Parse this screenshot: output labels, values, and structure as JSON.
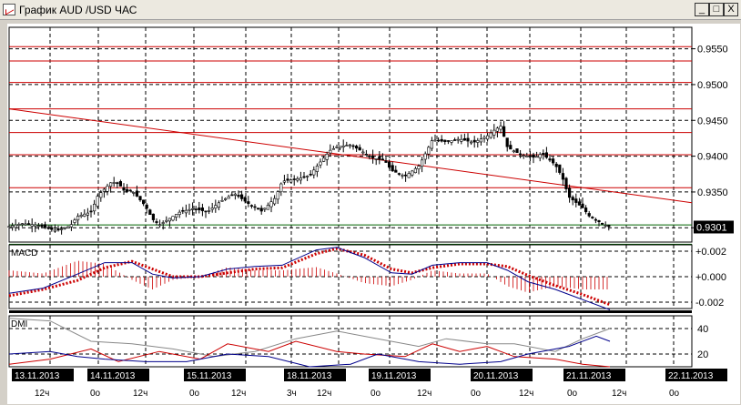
{
  "window": {
    "title": "График AUD /USD ЧАС",
    "min_label": "_",
    "max_label": "□",
    "close_label": "X"
  },
  "chart_data": [
    {
      "type": "candlestick",
      "panel": "price",
      "ylim": [
        0.928,
        0.958
      ],
      "yticks": [
        "0.9550",
        "0.9500",
        "0.9450",
        "0.9400",
        "0.9350",
        "0.9300"
      ],
      "ytick_values": [
        0.955,
        0.95,
        0.945,
        0.94,
        0.935,
        0.93
      ],
      "last_price_label": "0.9301",
      "last_price": 0.9301,
      "horizontal_levels": [
        0.9553,
        0.9533,
        0.9503,
        0.9466,
        0.9433,
        0.9402,
        0.9356
      ],
      "support_levels": [
        0.9304,
        0.9277
      ],
      "trendline": {
        "from": [
          0,
          0.9466
        ],
        "to": [
          1,
          0.9335
        ]
      },
      "close_path": [
        [
          0,
          0.9302
        ],
        [
          0.02,
          0.9306
        ],
        [
          0.04,
          0.9304
        ],
        [
          0.06,
          0.9298
        ],
        [
          0.07,
          0.9296
        ],
        [
          0.09,
          0.9303
        ],
        [
          0.1,
          0.9316
        ],
        [
          0.12,
          0.9322
        ],
        [
          0.13,
          0.9345
        ],
        [
          0.15,
          0.9364
        ],
        [
          0.16,
          0.9362
        ],
        [
          0.17,
          0.935
        ],
        [
          0.18,
          0.9352
        ],
        [
          0.2,
          0.933
        ],
        [
          0.21,
          0.9312
        ],
        [
          0.22,
          0.9304
        ],
        [
          0.23,
          0.931
        ],
        [
          0.25,
          0.9322
        ],
        [
          0.27,
          0.9327
        ],
        [
          0.29,
          0.9322
        ],
        [
          0.31,
          0.9337
        ],
        [
          0.33,
          0.9348
        ],
        [
          0.35,
          0.9334
        ],
        [
          0.37,
          0.9323
        ],
        [
          0.39,
          0.9342
        ],
        [
          0.4,
          0.9365
        ],
        [
          0.42,
          0.9368
        ],
        [
          0.44,
          0.9373
        ],
        [
          0.45,
          0.9385
        ],
        [
          0.47,
          0.9408
        ],
        [
          0.48,
          0.9413
        ],
        [
          0.5,
          0.9416
        ],
        [
          0.52,
          0.9405
        ],
        [
          0.53,
          0.9398
        ],
        [
          0.55,
          0.9394
        ],
        [
          0.56,
          0.938
        ],
        [
          0.58,
          0.9372
        ],
        [
          0.6,
          0.9386
        ],
        [
          0.61,
          0.9404
        ],
        [
          0.62,
          0.9423
        ],
        [
          0.64,
          0.942
        ],
        [
          0.66,
          0.9424
        ],
        [
          0.68,
          0.9419
        ],
        [
          0.7,
          0.9428
        ],
        [
          0.71,
          0.9436
        ],
        [
          0.72,
          0.9442
        ],
        [
          0.73,
          0.9412
        ],
        [
          0.75,
          0.9402
        ],
        [
          0.77,
          0.9398
        ],
        [
          0.78,
          0.9404
        ],
        [
          0.8,
          0.9388
        ],
        [
          0.81,
          0.9371
        ],
        [
          0.82,
          0.9343
        ],
        [
          0.84,
          0.9328
        ],
        [
          0.85,
          0.9316
        ],
        [
          0.87,
          0.9305
        ],
        [
          0.88,
          0.9301
        ]
      ]
    },
    {
      "type": "line",
      "panel": "MACD",
      "name": "MACD",
      "ylim": [
        -0.0025,
        0.0025
      ],
      "yticks": [
        "+0.002",
        "+0.000",
        "-0.002"
      ],
      "ytick_values": [
        0.002,
        0.0,
        -0.002
      ],
      "series": [
        {
          "name": "",
          "style": "dotted",
          "color": "#cc0000",
          "points": [
            [
              0,
              -0.0015
            ],
            [
              0.05,
              -0.001
            ],
            [
              0.1,
              -0.0003
            ],
            [
              0.14,
              0.0007
            ],
            [
              0.18,
              0.0012
            ],
            [
              0.21,
              0.0006
            ],
            [
              0.24,
              0.0
            ],
            [
              0.28,
              0.0
            ],
            [
              0.32,
              0.0003
            ],
            [
              0.36,
              0.0006
            ],
            [
              0.4,
              0.0007
            ],
            [
              0.45,
              0.0018
            ],
            [
              0.48,
              0.0022
            ],
            [
              0.52,
              0.0017
            ],
            [
              0.56,
              0.0006
            ],
            [
              0.59,
              0.0003
            ],
            [
              0.62,
              0.0007
            ],
            [
              0.66,
              0.001
            ],
            [
              0.7,
              0.001
            ],
            [
              0.73,
              0.0008
            ],
            [
              0.76,
              0.0001
            ],
            [
              0.8,
              -0.0007
            ],
            [
              0.84,
              -0.0014
            ],
            [
              0.88,
              -0.0022
            ]
          ]
        },
        {
          "name": "",
          "style": "solid",
          "color": "#00008b",
          "points": [
            [
              0,
              -0.0013
            ],
            [
              0.05,
              -0.0009
            ],
            [
              0.1,
              0.0002
            ],
            [
              0.14,
              0.0011
            ],
            [
              0.18,
              0.0011
            ],
            [
              0.21,
              0.0002
            ],
            [
              0.24,
              -0.0001
            ],
            [
              0.28,
              0.0
            ],
            [
              0.32,
              0.0006
            ],
            [
              0.36,
              0.0008
            ],
            [
              0.4,
              0.0009
            ],
            [
              0.45,
              0.0021
            ],
            [
              0.48,
              0.0023
            ],
            [
              0.52,
              0.0015
            ],
            [
              0.56,
              0.0003
            ],
            [
              0.59,
              0.0002
            ],
            [
              0.62,
              0.0009
            ],
            [
              0.66,
              0.0011
            ],
            [
              0.7,
              0.0011
            ],
            [
              0.73,
              0.0005
            ],
            [
              0.76,
              -0.0004
            ],
            [
              0.8,
              -0.001
            ],
            [
              0.84,
              -0.0018
            ],
            [
              0.88,
              -0.0026
            ]
          ]
        }
      ]
    },
    {
      "type": "line",
      "panel": "DMI",
      "name": "DMI",
      "ylim": [
        10,
        50
      ],
      "yticks": [
        "40",
        "20"
      ],
      "ytick_values": [
        40,
        20
      ],
      "series": [
        {
          "name": "",
          "color": "#888888",
          "points": [
            [
              0,
              48
            ],
            [
              0.06,
              46
            ],
            [
              0.12,
              30
            ],
            [
              0.18,
              28
            ],
            [
              0.24,
              24
            ],
            [
              0.3,
              18
            ],
            [
              0.36,
              22
            ],
            [
              0.42,
              32
            ],
            [
              0.48,
              38
            ],
            [
              0.54,
              32
            ],
            [
              0.6,
              26
            ],
            [
              0.64,
              32
            ],
            [
              0.7,
              28
            ],
            [
              0.74,
              28
            ],
            [
              0.8,
              22
            ],
            [
              0.84,
              32
            ],
            [
              0.88,
              40
            ]
          ]
        },
        {
          "name": "",
          "color": "#cc0000",
          "points": [
            [
              0,
              12
            ],
            [
              0.06,
              16
            ],
            [
              0.12,
              24
            ],
            [
              0.16,
              14
            ],
            [
              0.22,
              22
            ],
            [
              0.28,
              16
            ],
            [
              0.32,
              28
            ],
            [
              0.38,
              22
            ],
            [
              0.42,
              30
            ],
            [
              0.48,
              22
            ],
            [
              0.52,
              20
            ],
            [
              0.58,
              18
            ],
            [
              0.62,
              28
            ],
            [
              0.66,
              22
            ],
            [
              0.7,
              26
            ],
            [
              0.74,
              18
            ],
            [
              0.8,
              16
            ],
            [
              0.84,
              12
            ],
            [
              0.88,
              10
            ]
          ]
        },
        {
          "name": "",
          "color": "#00008b",
          "points": [
            [
              0,
              20
            ],
            [
              0.06,
              22
            ],
            [
              0.1,
              18
            ],
            [
              0.14,
              16
            ],
            [
              0.2,
              14
            ],
            [
              0.26,
              14
            ],
            [
              0.32,
              20
            ],
            [
              0.38,
              18
            ],
            [
              0.44,
              10
            ],
            [
              0.5,
              12
            ],
            [
              0.54,
              20
            ],
            [
              0.6,
              14
            ],
            [
              0.66,
              12
            ],
            [
              0.72,
              14
            ],
            [
              0.76,
              20
            ],
            [
              0.82,
              26
            ],
            [
              0.86,
              34
            ],
            [
              0.88,
              30
            ]
          ]
        }
      ]
    }
  ],
  "dates": [
    "13.11.2013",
    "14.11.2013",
    "15.11.2013",
    "18.11.2013",
    "19.11.2013",
    "20.11.2013",
    "21.11.2013",
    "22.11.2013"
  ],
  "hour_labels": [
    "12ч",
    "0о",
    "12ч",
    "0о",
    "12ч",
    "3ч",
    "12ч",
    "0о",
    "12ч",
    "0о",
    "12ч",
    "0о",
    "12ч",
    "0о"
  ],
  "colors": {
    "background": "#ffffff",
    "levels": "#cc0000",
    "support": "#006400",
    "grid": "#000000"
  }
}
